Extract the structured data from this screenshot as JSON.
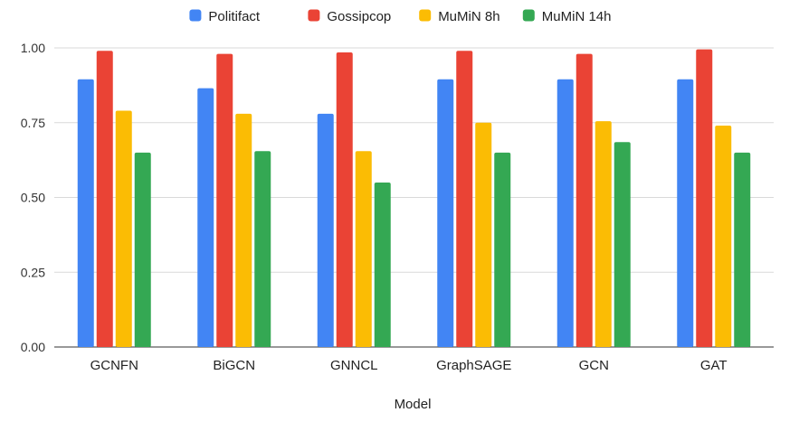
{
  "chart_data": {
    "type": "bar",
    "title": "",
    "xlabel": "Model",
    "ylabel": "",
    "ylim": [
      0,
      1.0
    ],
    "yticks": [
      "0.00",
      "0.25",
      "0.50",
      "0.75",
      "1.00"
    ],
    "legend_position": "top-center",
    "grid": true,
    "categories": [
      "GCNFN",
      "BiGCN",
      "GNNCL",
      "GraphSAGE",
      "GCN",
      "GAT"
    ],
    "series": [
      {
        "name": "Politifact",
        "color": "#4285F4",
        "values": [
          0.895,
          0.865,
          0.78,
          0.895,
          0.895,
          0.895
        ]
      },
      {
        "name": "Gossipcop",
        "color": "#EA4335",
        "values": [
          0.99,
          0.98,
          0.985,
          0.99,
          0.98,
          0.995
        ]
      },
      {
        "name": "MuMiN 8h",
        "color": "#FBBC04",
        "values": [
          0.79,
          0.78,
          0.655,
          0.75,
          0.755,
          0.74
        ]
      },
      {
        "name": "MuMiN 14h",
        "color": "#34A853",
        "values": [
          0.65,
          0.655,
          0.55,
          0.65,
          0.685,
          0.65
        ]
      }
    ]
  }
}
